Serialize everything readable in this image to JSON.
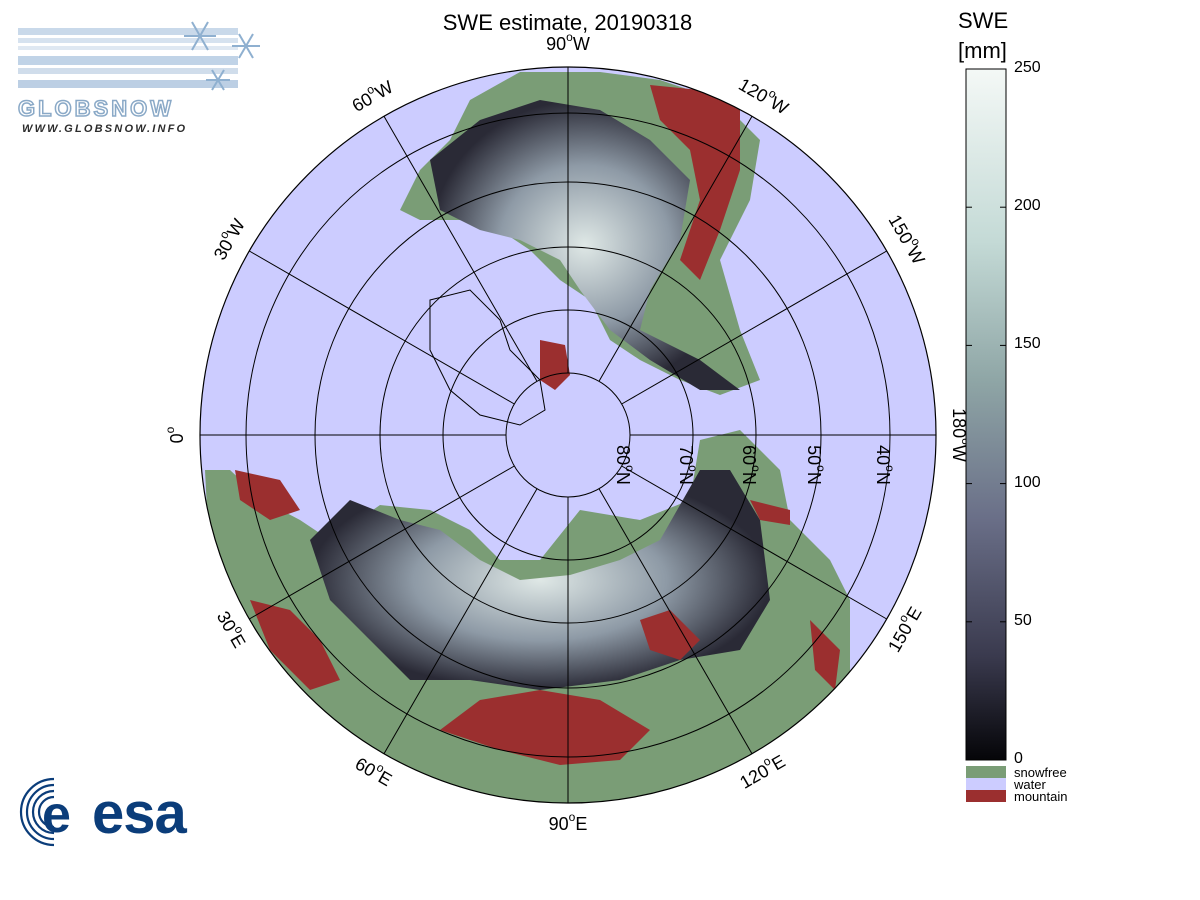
{
  "title": "SWE estimate, 20190318",
  "logos": {
    "globsnow_word": "GLOBSNOW",
    "globsnow_url": "WWW.GLOBSNOW.INFO",
    "esa_word": "esa"
  },
  "map": {
    "projection": "polar-stereographic-north",
    "longitude_labels": [
      {
        "text": "90°W",
        "base": "90",
        "dir": "W"
      },
      {
        "text": "120°W",
        "base": "120",
        "dir": "W"
      },
      {
        "text": "150°W",
        "base": "150",
        "dir": "W"
      },
      {
        "text": "180°W",
        "base": "180",
        "dir": "W"
      },
      {
        "text": "150°E",
        "base": "150",
        "dir": "E"
      },
      {
        "text": "120°E",
        "base": "120",
        "dir": "E"
      },
      {
        "text": "90°E",
        "base": "90",
        "dir": "E"
      },
      {
        "text": "60°E",
        "base": "60",
        "dir": "E"
      },
      {
        "text": "30°E",
        "base": "30",
        "dir": "E"
      },
      {
        "text": "0°",
        "base": "0",
        "dir": ""
      },
      {
        "text": "30°W",
        "base": "30",
        "dir": "W"
      },
      {
        "text": "60°W",
        "base": "60",
        "dir": "W"
      }
    ],
    "latitude_labels": [
      {
        "text": "80°N",
        "base": "80",
        "dir": "N"
      },
      {
        "text": "70°N",
        "base": "70",
        "dir": "N"
      },
      {
        "text": "60°N",
        "base": "60",
        "dir": "N"
      },
      {
        "text": "50°N",
        "base": "50",
        "dir": "N"
      },
      {
        "text": "40°N",
        "base": "40",
        "dir": "N"
      }
    ],
    "colors": {
      "water": "#ccccff",
      "snowfree": "#7a9d76",
      "mountain": "#9b2f2f",
      "snow_low": "#0b0b10",
      "snow_high": "#f4f8f6"
    }
  },
  "colorbar": {
    "title_line1": "SWE",
    "title_line2": "[mm]",
    "ticks": [
      "250",
      "200",
      "150",
      "100",
      "50",
      "0"
    ],
    "range": [
      0,
      250
    ],
    "legend": [
      {
        "label": "snowfree",
        "color": "#7a9d76"
      },
      {
        "label": "water",
        "color": "#ccccff"
      },
      {
        "label": "mountain",
        "color": "#9b2f2f"
      }
    ]
  }
}
